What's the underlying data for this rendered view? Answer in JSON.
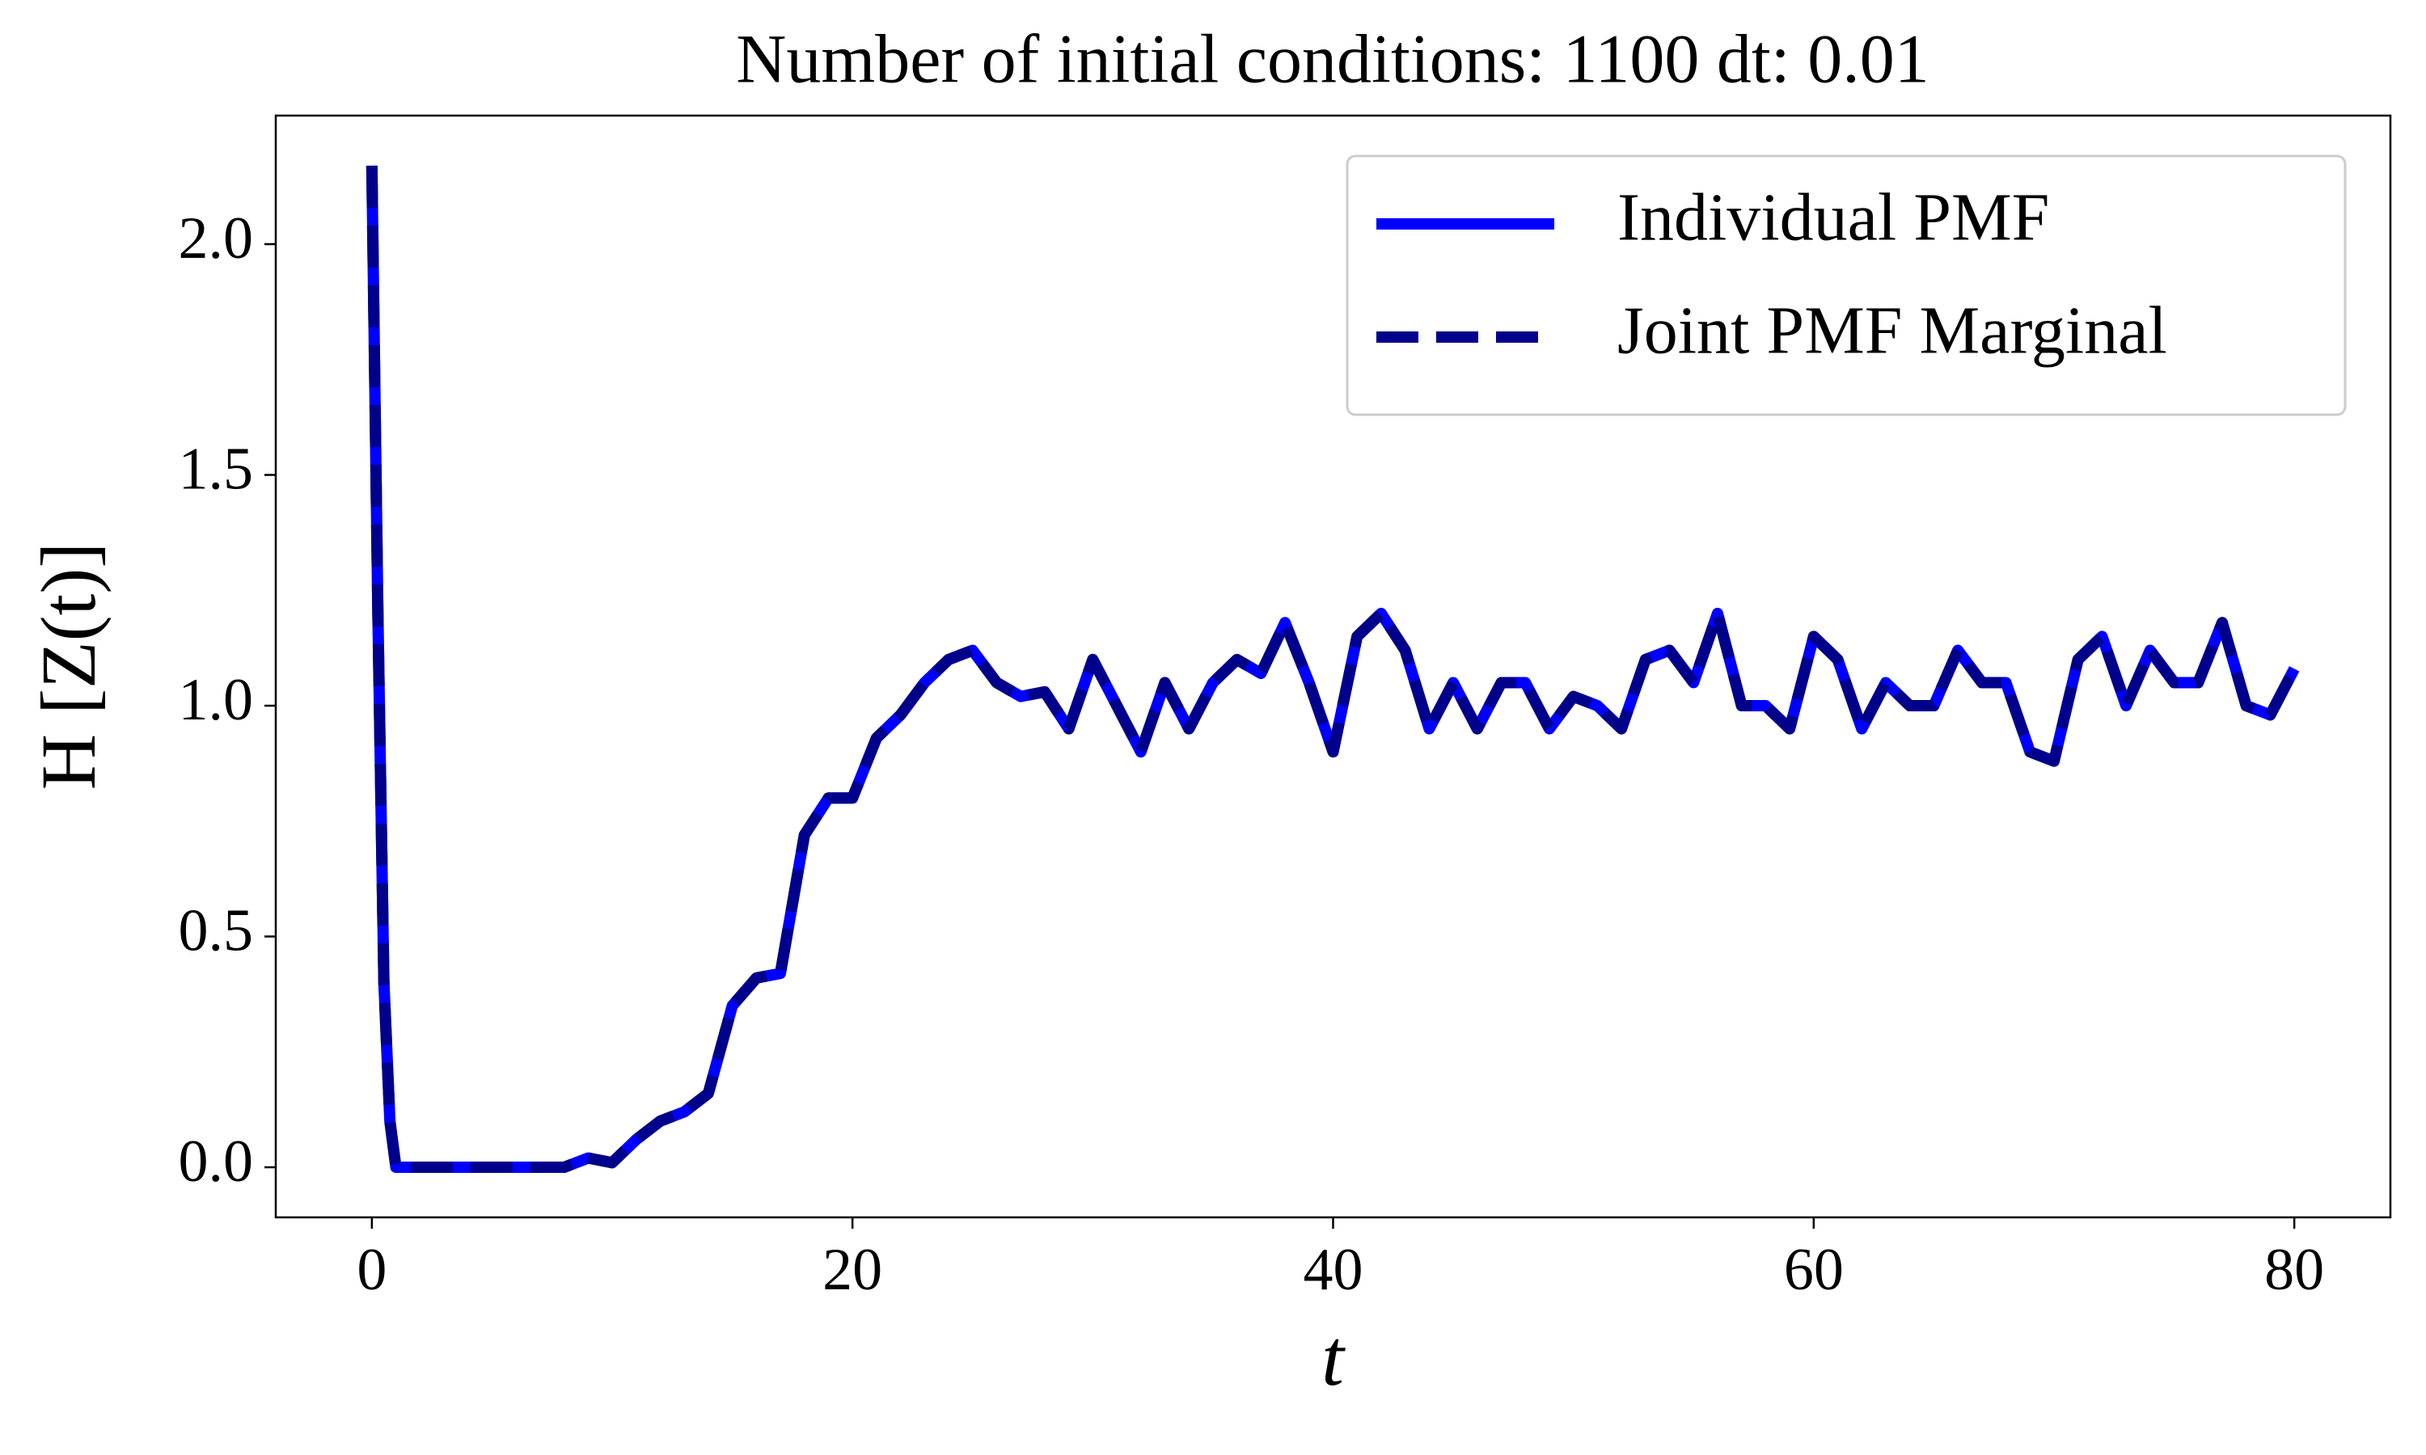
{
  "chart_data": {
    "type": "line",
    "title": "Number of initial conditions: 1100 dt: 0.01",
    "x_label": "t",
    "y_label": "H [Z(t)]",
    "x": [
      0,
      0.25,
      0.5,
      0.75,
      1,
      2,
      3,
      4,
      5,
      6,
      7,
      8,
      9,
      10,
      11,
      12,
      13,
      14,
      15,
      16,
      17,
      18,
      19,
      20,
      21,
      22,
      23,
      24,
      25,
      26,
      27,
      28,
      29,
      30,
      31,
      32,
      33,
      34,
      35,
      36,
      37,
      38,
      39,
      40,
      41,
      42,
      43,
      44,
      45,
      46,
      47,
      48,
      49,
      50,
      51,
      52,
      53,
      54,
      55,
      56,
      57,
      58,
      59,
      60,
      61,
      62,
      63,
      64,
      65,
      66,
      67,
      68,
      69,
      70,
      71,
      72,
      73,
      74,
      75,
      76,
      77,
      78,
      79,
      80
    ],
    "series": [
      {
        "name": "Individual PMF",
        "color": "#0000ff",
        "dash": false,
        "values": [
          2.17,
          1.2,
          0.4,
          0.1,
          0.0,
          0,
          0,
          0,
          0,
          0,
          0,
          0,
          0.02,
          0.01,
          0.06,
          0.1,
          0.12,
          0.16,
          0.35,
          0.41,
          0.42,
          0.72,
          0.8,
          0.8,
          0.93,
          0.98,
          1.05,
          1.1,
          1.12,
          1.05,
          1.02,
          1.03,
          0.95,
          1.1,
          1.0,
          0.9,
          1.05,
          0.95,
          1.05,
          1.1,
          1.07,
          1.18,
          1.05,
          0.9,
          1.15,
          1.2,
          1.12,
          0.95,
          1.05,
          0.95,
          1.05,
          1.05,
          0.95,
          1.02,
          1.0,
          0.95,
          1.1,
          1.12,
          1.05,
          1.2,
          1.0,
          1.0,
          0.95,
          1.15,
          1.1,
          0.95,
          1.05,
          1.0,
          1.0,
          1.12,
          1.05,
          1.05,
          0.9,
          0.88,
          1.1,
          1.15,
          1.0,
          1.12,
          1.05,
          1.05,
          1.18,
          1.0,
          0.98,
          1.08
        ]
      },
      {
        "name": "Joint PMF Marginal",
        "color": "#00008b",
        "dash": true,
        "values": [
          2.17,
          1.2,
          0.4,
          0.1,
          0.0,
          0,
          0,
          0,
          0,
          0,
          0,
          0,
          0.02,
          0.01,
          0.06,
          0.1,
          0.12,
          0.16,
          0.35,
          0.41,
          0.42,
          0.72,
          0.8,
          0.8,
          0.93,
          0.98,
          1.05,
          1.1,
          1.12,
          1.05,
          1.02,
          1.03,
          0.95,
          1.1,
          1.0,
          0.9,
          1.05,
          0.95,
          1.05,
          1.1,
          1.07,
          1.18,
          1.05,
          0.9,
          1.15,
          1.2,
          1.12,
          0.95,
          1.05,
          0.95,
          1.05,
          1.05,
          0.95,
          1.02,
          1.0,
          0.95,
          1.1,
          1.12,
          1.05,
          1.2,
          1.0,
          1.0,
          0.95,
          1.15,
          1.1,
          0.95,
          1.05,
          1.0,
          1.0,
          1.12,
          1.05,
          1.05,
          0.9,
          0.88,
          1.1,
          1.15,
          1.0,
          1.12,
          1.05,
          1.05,
          1.18,
          1.0,
          0.98,
          1.08
        ]
      }
    ],
    "xlim": [
      -4,
      84
    ],
    "ylim": [
      -0.1085,
      2.2785
    ],
    "xticks": [
      0,
      20,
      40,
      60,
      80
    ],
    "yticks": [
      {
        "value": 0,
        "label": "0.0"
      },
      {
        "value": 0.5,
        "label": "0.5"
      },
      {
        "value": 1,
        "label": "1.0"
      },
      {
        "value": 1.5,
        "label": "1.5"
      },
      {
        "value": 2,
        "label": "2.0"
      }
    ],
    "grid": false,
    "legend": "upper right"
  }
}
